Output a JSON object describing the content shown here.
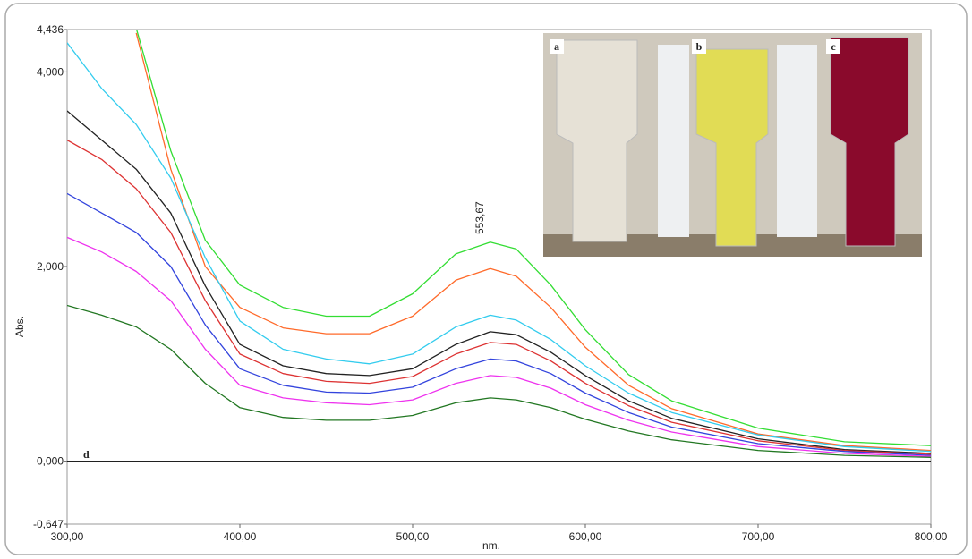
{
  "chart_data": {
    "type": "line",
    "x_label": "nm.",
    "y_label": "Abs.",
    "annotation": "553,67",
    "panel_label": "d",
    "inset_labels": [
      "a",
      "b",
      "c"
    ],
    "x": [
      300,
      320,
      340,
      360,
      380,
      400,
      425,
      450,
      475,
      500,
      525,
      545,
      560,
      580,
      600,
      625,
      650,
      700,
      750,
      800
    ],
    "xlim": [
      300,
      800
    ],
    "ylim": [
      -0.647,
      4.436
    ],
    "xticks": [
      {
        "value": 300,
        "label": "300,00"
      },
      {
        "value": 400,
        "label": "400,00"
      },
      {
        "value": 500,
        "label": "500,00"
      },
      {
        "value": 600,
        "label": "600,00"
      },
      {
        "value": 700,
        "label": "700,00"
      },
      {
        "value": 800,
        "label": "800,00"
      }
    ],
    "yticks": [
      {
        "value": -0.647,
        "label": "-0,647"
      },
      {
        "value": 0,
        "label": "0,000"
      },
      {
        "value": 2,
        "label": "2,000"
      },
      {
        "value": 4,
        "label": "4,000"
      },
      {
        "value": 4.436,
        "label": "4,436"
      }
    ],
    "series": [
      {
        "color": "#33dd33",
        "values": [
          null,
          null,
          4.45,
          3.19,
          2.27,
          1.81,
          1.58,
          1.49,
          1.49,
          1.72,
          2.13,
          2.25,
          2.18,
          1.81,
          1.35,
          0.89,
          0.62,
          0.34,
          0.2,
          0.16
        ]
      },
      {
        "color": "#ff6a2a",
        "values": [
          null,
          null,
          4.4,
          3.0,
          2.0,
          1.58,
          1.37,
          1.31,
          1.31,
          1.49,
          1.86,
          1.98,
          1.9,
          1.58,
          1.17,
          0.78,
          0.54,
          0.28,
          0.16,
          0.11
        ]
      },
      {
        "color": "#33ccee",
        "values": [
          4.3,
          3.83,
          3.46,
          2.91,
          2.09,
          1.44,
          1.15,
          1.05,
          1.0,
          1.1,
          1.38,
          1.5,
          1.45,
          1.25,
          0.98,
          0.7,
          0.5,
          0.27,
          0.15,
          0.1
        ]
      },
      {
        "color": "#222222",
        "values": [
          3.6,
          3.3,
          3.0,
          2.55,
          1.8,
          1.2,
          0.98,
          0.9,
          0.88,
          0.95,
          1.2,
          1.33,
          1.3,
          1.12,
          0.88,
          0.62,
          0.44,
          0.23,
          0.12,
          0.08
        ]
      },
      {
        "color": "#dd3333",
        "values": [
          3.3,
          3.1,
          2.8,
          2.35,
          1.65,
          1.1,
          0.9,
          0.82,
          0.8,
          0.87,
          1.1,
          1.22,
          1.2,
          1.03,
          0.8,
          0.57,
          0.4,
          0.21,
          0.11,
          0.07
        ]
      },
      {
        "color": "#3344dd",
        "values": [
          2.75,
          2.55,
          2.35,
          2.0,
          1.4,
          0.95,
          0.78,
          0.71,
          0.7,
          0.76,
          0.95,
          1.05,
          1.03,
          0.9,
          0.7,
          0.5,
          0.35,
          0.18,
          0.1,
          0.06
        ]
      },
      {
        "color": "#ee33ee",
        "values": [
          2.3,
          2.15,
          1.95,
          1.65,
          1.15,
          0.78,
          0.65,
          0.6,
          0.58,
          0.63,
          0.8,
          0.88,
          0.86,
          0.75,
          0.58,
          0.42,
          0.3,
          0.15,
          0.08,
          0.05
        ]
      },
      {
        "color": "#227722",
        "values": [
          1.6,
          1.5,
          1.38,
          1.15,
          0.8,
          0.55,
          0.45,
          0.42,
          0.42,
          0.47,
          0.6,
          0.65,
          0.63,
          0.55,
          0.43,
          0.31,
          0.22,
          0.11,
          0.06,
          0.04
        ]
      }
    ]
  }
}
